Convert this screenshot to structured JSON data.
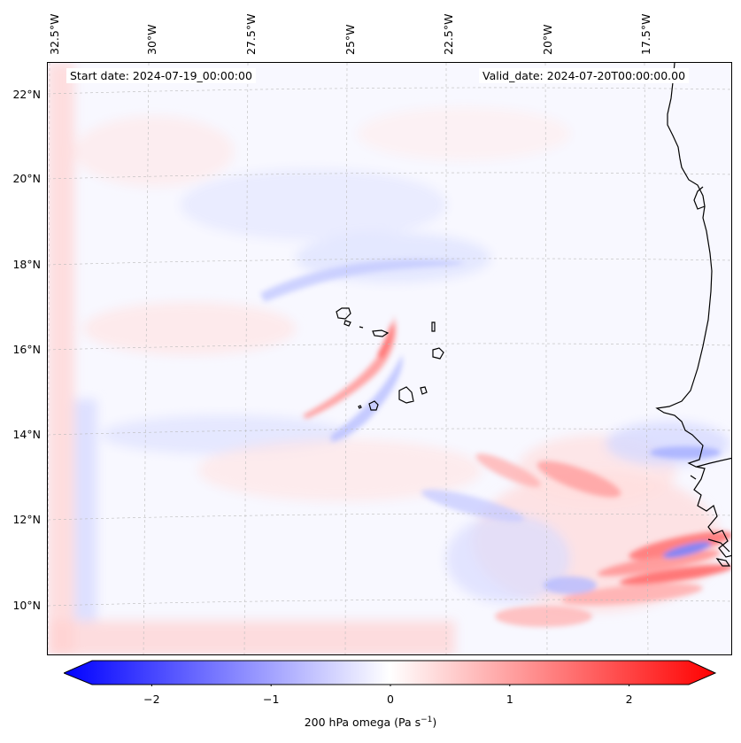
{
  "header": {
    "start_date": "Start date: 2024-07-19_00:00:00",
    "valid_date": "Valid_date: 2024-07-20T00:00:00.00"
  },
  "axes": {
    "lon_labels": [
      "32.5°W",
      "30°W",
      "27.5°W",
      "25°W",
      "22.5°W",
      "20°W",
      "17.5°W"
    ],
    "lat_labels": [
      "22°N",
      "20°N",
      "18°N",
      "16°N",
      "14°N",
      "12°N",
      "10°N"
    ]
  },
  "colorbar": {
    "ticks": [
      "−2",
      "−1",
      "0",
      "1",
      "2"
    ],
    "tick_values": [
      -2,
      -1,
      0,
      1,
      2
    ],
    "range": [
      -2.5,
      2.5
    ],
    "label_prefix": "200 hPa omega (Pa s",
    "label_exp": "−1",
    "label_suffix": ")",
    "color_low": "#0000ff",
    "color_mid": "#ffffff",
    "color_high": "#ff0000"
  },
  "map": {
    "variable": "200 hPa omega",
    "region": "Cape Verde Islands and West African coast"
  }
}
